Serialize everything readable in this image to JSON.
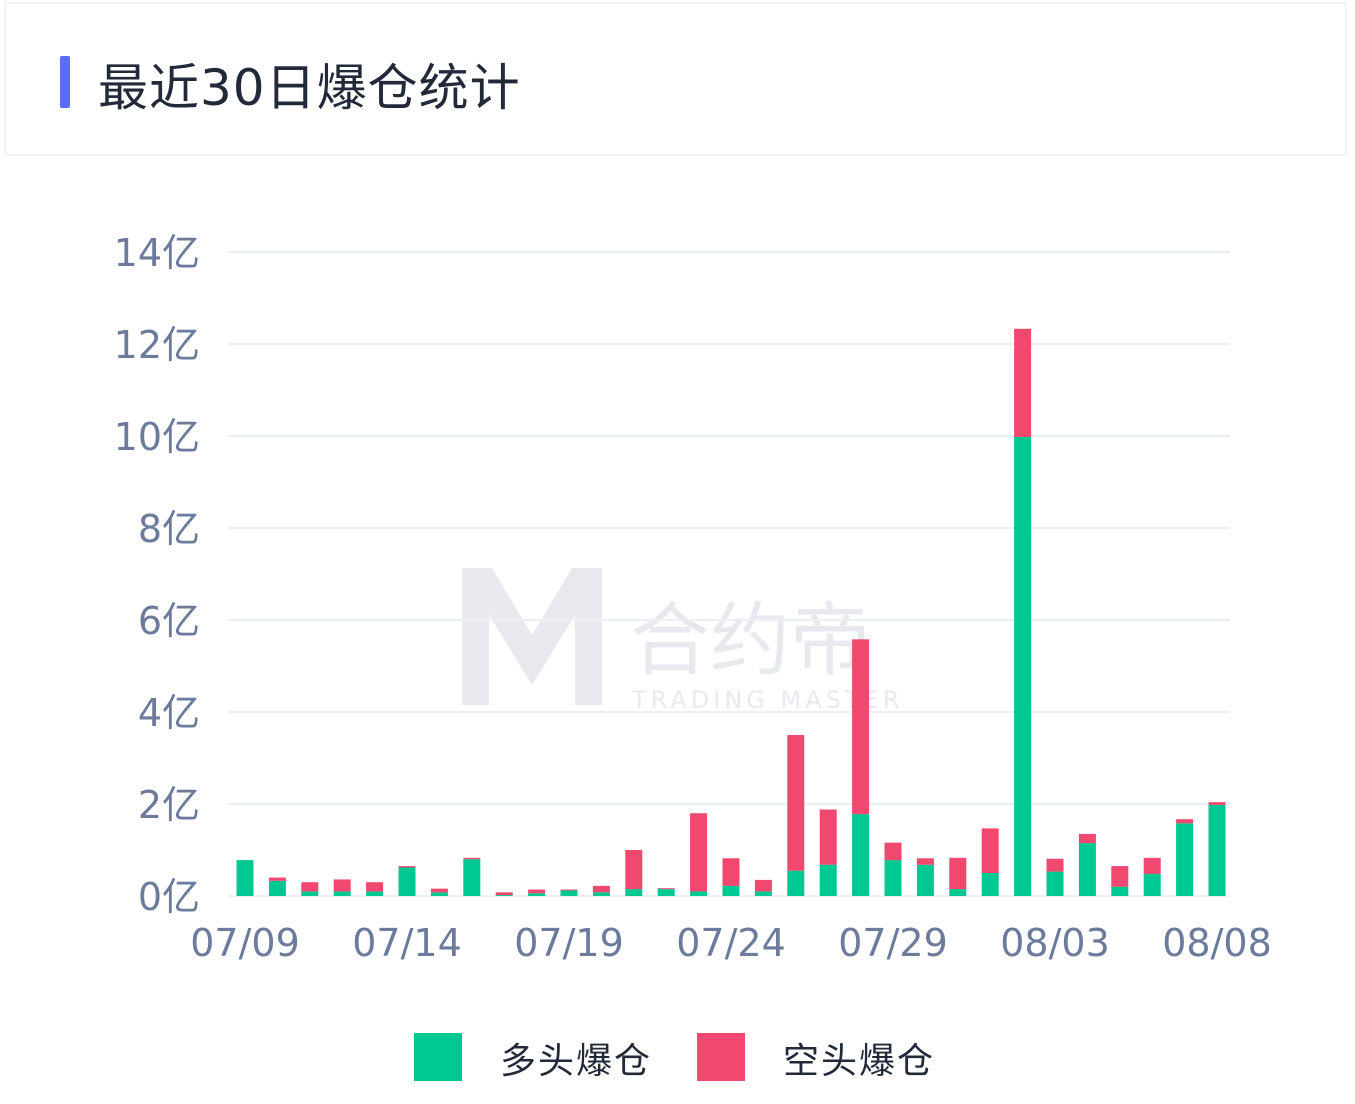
{
  "header": {
    "title": "最近30日爆仓统计"
  },
  "colors": {
    "accent": "#5b6cf5",
    "long": "#00c892",
    "short": "#f0486e",
    "axis_text": "#6c7a9c",
    "grid": "#eceff5"
  },
  "watermark": {
    "brand": "合约帝",
    "tagline": "TRADING MASTER"
  },
  "chart_data": {
    "type": "bar",
    "stacked": true,
    "categories": [
      "07/09",
      "07/10",
      "07/11",
      "07/12",
      "07/13",
      "07/14",
      "07/15",
      "07/16",
      "07/17",
      "07/18",
      "07/19",
      "07/20",
      "07/21",
      "07/22",
      "07/23",
      "07/24",
      "07/25",
      "07/26",
      "07/27",
      "07/28",
      "07/29",
      "07/30",
      "07/31",
      "08/01",
      "08/02",
      "08/03",
      "08/04",
      "08/05",
      "08/06",
      "08/07",
      "08/08"
    ],
    "x_tick_labels": [
      "07/09",
      "07/14",
      "07/19",
      "07/24",
      "07/29",
      "08/03",
      "08/08"
    ],
    "series": [
      {
        "name": "多头爆仓",
        "values": [
          0.78,
          0.33,
          0.1,
          0.1,
          0.1,
          0.62,
          0.08,
          0.8,
          0.02,
          0.06,
          0.12,
          0.08,
          0.15,
          0.15,
          0.1,
          0.22,
          0.1,
          0.55,
          0.68,
          1.78,
          0.78,
          0.68,
          0.15,
          0.5,
          9.98,
          0.53,
          1.15,
          0.2,
          0.48,
          1.58,
          1.98
        ]
      },
      {
        "name": "空头爆仓",
        "values": [
          0.0,
          0.07,
          0.2,
          0.26,
          0.2,
          0.03,
          0.08,
          0.03,
          0.06,
          0.08,
          0.02,
          0.14,
          0.85,
          0.02,
          1.7,
          0.6,
          0.25,
          2.95,
          1.2,
          3.8,
          0.38,
          0.14,
          0.68,
          0.97,
          2.35,
          0.28,
          0.2,
          0.45,
          0.35,
          0.09,
          0.06
        ]
      }
    ],
    "y_tick_labels": [
      "0亿",
      "2亿",
      "4亿",
      "6亿",
      "8亿",
      "10亿",
      "12亿",
      "14亿"
    ],
    "ylabel": "",
    "xlabel": "",
    "ylim": [
      0,
      14
    ],
    "grid": true,
    "legend_position": "bottom-center"
  },
  "legend": [
    {
      "label": "多头爆仓",
      "color": "#00c892"
    },
    {
      "label": "空头爆仓",
      "color": "#f0486e"
    }
  ]
}
